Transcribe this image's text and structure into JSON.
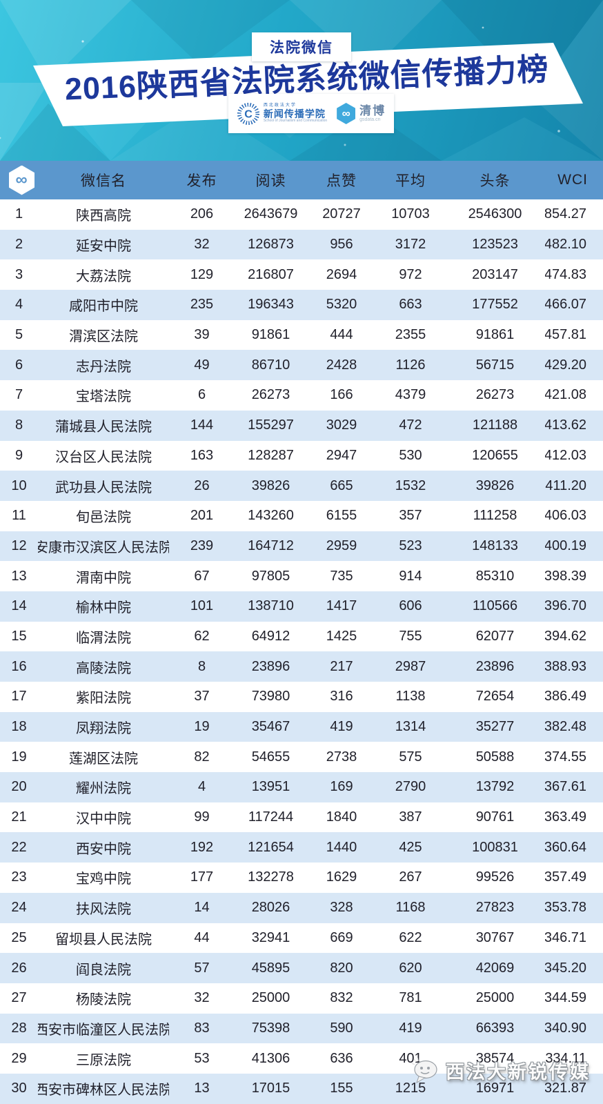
{
  "colors": {
    "accent_navy": "#1d389b",
    "header_bg": "#5b97cd",
    "row_alt_bg": "#d8e7f6",
    "hero_teal_light": "#3cc6e0",
    "hero_teal_dark": "#1485ab",
    "qingbo_blue": "#3fa9dd"
  },
  "hero": {
    "badge": "法院微信",
    "title": "2016陕西省法院系统微信传播力榜",
    "school_logo": {
      "mark": "C",
      "tiny_top": "西北政法大学",
      "name": "新闻传播学院",
      "subtitle": "School of Journalism and Communication"
    },
    "qingbo_logo": {
      "infinity_glyph": "∞",
      "name": "清博",
      "subtitle": "gsdata.cn"
    }
  },
  "table": {
    "header_icon_glyph": "∞",
    "columns": [
      "微信名",
      "发布",
      "阅读",
      "点赞",
      "平均",
      "头条",
      "WCI"
    ],
    "rows": [
      [
        "1",
        "陕西高院",
        "206",
        "2643679",
        "20727",
        "10703",
        "2546300",
        "854.27"
      ],
      [
        "2",
        "延安中院",
        "32",
        "126873",
        "956",
        "3172",
        "123523",
        "482.10"
      ],
      [
        "3",
        "大荔法院",
        "129",
        "216807",
        "2694",
        "972",
        "203147",
        "474.83"
      ],
      [
        "4",
        "咸阳市中院",
        "235",
        "196343",
        "5320",
        "663",
        "177552",
        "466.07"
      ],
      [
        "5",
        "渭滨区法院",
        "39",
        "91861",
        "444",
        "2355",
        "91861",
        "457.81"
      ],
      [
        "6",
        "志丹法院",
        "49",
        "86710",
        "2428",
        "1126",
        "56715",
        "429.20"
      ],
      [
        "7",
        "宝塔法院",
        "6",
        "26273",
        "166",
        "4379",
        "26273",
        "421.08"
      ],
      [
        "8",
        "蒲城县人民法院",
        "144",
        "155297",
        "3029",
        "472",
        "121188",
        "413.62"
      ],
      [
        "9",
        "汉台区人民法院",
        "163",
        "128287",
        "2947",
        "530",
        "120655",
        "412.03"
      ],
      [
        "10",
        "武功县人民法院",
        "26",
        "39826",
        "665",
        "1532",
        "39826",
        "411.20"
      ],
      [
        "11",
        "旬邑法院",
        "201",
        "143260",
        "6155",
        "357",
        "111258",
        "406.03"
      ],
      [
        "12",
        "安康市汉滨区人民法院",
        "239",
        "164712",
        "2959",
        "523",
        "148133",
        "400.19"
      ],
      [
        "13",
        "渭南中院",
        "67",
        "97805",
        "735",
        "914",
        "85310",
        "398.39"
      ],
      [
        "14",
        "榆林中院",
        "101",
        "138710",
        "1417",
        "606",
        "110566",
        "396.70"
      ],
      [
        "15",
        "临渭法院",
        "62",
        "64912",
        "1425",
        "755",
        "62077",
        "394.62"
      ],
      [
        "16",
        "高陵法院",
        "8",
        "23896",
        "217",
        "2987",
        "23896",
        "388.93"
      ],
      [
        "17",
        "紫阳法院",
        "37",
        "73980",
        "316",
        "1138",
        "72654",
        "386.49"
      ],
      [
        "18",
        "凤翔法院",
        "19",
        "35467",
        "419",
        "1314",
        "35277",
        "382.48"
      ],
      [
        "19",
        "莲湖区法院",
        "82",
        "54655",
        "2738",
        "575",
        "50588",
        "374.55"
      ],
      [
        "20",
        "耀州法院",
        "4",
        "13951",
        "169",
        "2790",
        "13792",
        "367.61"
      ],
      [
        "21",
        "汉中中院",
        "99",
        "117244",
        "1840",
        "387",
        "90761",
        "363.49"
      ],
      [
        "22",
        "西安中院",
        "192",
        "121654",
        "1440",
        "425",
        "100831",
        "360.64"
      ],
      [
        "23",
        "宝鸡中院",
        "177",
        "132278",
        "1629",
        "267",
        "99526",
        "357.49"
      ],
      [
        "24",
        "扶风法院",
        "14",
        "28026",
        "328",
        "1168",
        "27823",
        "353.78"
      ],
      [
        "25",
        "留坝县人民法院",
        "44",
        "32941",
        "669",
        "622",
        "30767",
        "346.71"
      ],
      [
        "26",
        "阎良法院",
        "57",
        "45895",
        "820",
        "620",
        "42069",
        "345.20"
      ],
      [
        "27",
        "杨陵法院",
        "32",
        "25000",
        "832",
        "781",
        "25000",
        "344.59"
      ],
      [
        "28",
        "西安市临潼区人民法院",
        "83",
        "75398",
        "590",
        "419",
        "66393",
        "340.90"
      ],
      [
        "29",
        "三原法院",
        "53",
        "41306",
        "636",
        "401",
        "38574",
        "334.11"
      ],
      [
        "30",
        "西安市碑林区人民法院",
        "13",
        "17015",
        "155",
        "1215",
        "16971",
        "321.87"
      ]
    ]
  },
  "watermark": {
    "label": "西法大新锐传媒",
    "icon": "chat-bubble-icon"
  }
}
